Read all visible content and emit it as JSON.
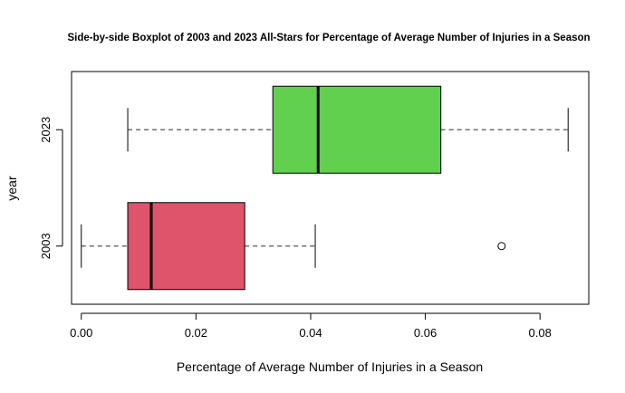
{
  "chart_data": {
    "type": "boxplot",
    "orientation": "horizontal",
    "title": "Side-by-side Boxplot of 2003 and 2023 All-Stars for Percentage of Average Number of Injuries in a Season",
    "xlabel": "Percentage of Average Number of Injuries in a Season",
    "ylabel": "year",
    "xlim": [
      -0.0017,
      0.0885
    ],
    "xticks": [
      "0.00",
      "0.02",
      "0.04",
      "0.06",
      "0.08"
    ],
    "xtick_values": [
      0.0,
      0.02,
      0.04,
      0.06,
      0.08
    ],
    "grid": false,
    "groups": [
      {
        "name": "2003",
        "color": "#DF536B",
        "min": 0.0,
        "q1": 0.0081,
        "median": 0.0122,
        "q3": 0.0285,
        "max": 0.0408,
        "outliers": [
          0.0733
        ]
      },
      {
        "name": "2023",
        "color": "#61D04F",
        "min": 0.0081,
        "q1": 0.0334,
        "median": 0.0413,
        "q3": 0.0627,
        "max": 0.0849,
        "outliers": []
      }
    ]
  }
}
